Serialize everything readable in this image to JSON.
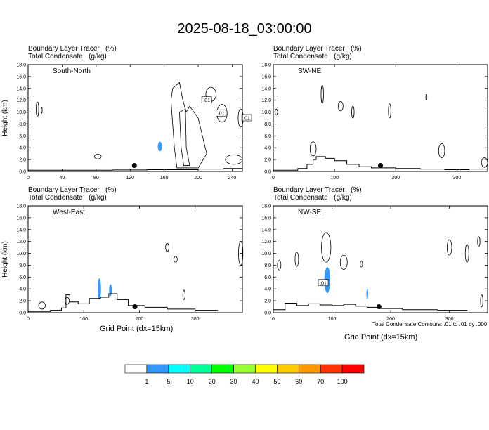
{
  "title": "2025-08-18_03:00:00",
  "field_labels": {
    "line1": "Boundary Layer Tracer   (%)",
    "line2": "Total Condensate   (g/kg)"
  },
  "colors": {
    "tracer_fill": "#3399ff",
    "contour": "#000000",
    "colorbar": [
      "#ffffff",
      "#3399ff",
      "#00ffff",
      "#00ff99",
      "#00ff00",
      "#99ff33",
      "#ffff00",
      "#ffcc00",
      "#ff9900",
      "#ff3300",
      "#ff0000"
    ]
  },
  "footnote": "Total Condensate Contours: .01 to .01 by .000",
  "chart_data": [
    {
      "type": "contour",
      "panel": "South-North",
      "ylabel": "Height (km)",
      "xlabel": "",
      "xlim": [
        0,
        252
      ],
      "ylim": [
        0,
        18
      ],
      "xticks": [
        0,
        40,
        80,
        120,
        160,
        200,
        240
      ],
      "yticks": [
        "0.0",
        "2.0",
        "4.0",
        "6.0",
        "8.0",
        "10.0",
        "12.0",
        "14.0",
        "16.0",
        "18.0"
      ],
      "contour_labels": [
        ".01",
        ".01",
        ".01"
      ],
      "marker_x": 125,
      "marker_y": 1.0,
      "terrain": [
        [
          0,
          0.2
        ],
        [
          60,
          0.2
        ],
        [
          100,
          0.25
        ],
        [
          140,
          0.3
        ],
        [
          170,
          0.3
        ],
        [
          200,
          0.4
        ],
        [
          230,
          0.5
        ],
        [
          252,
          0.5
        ]
      ]
    },
    {
      "type": "contour",
      "panel": "SW-NE",
      "ylabel": "",
      "xlabel": "",
      "xlim": [
        0,
        350
      ],
      "ylim": [
        0,
        18
      ],
      "xticks": [
        0,
        100,
        200,
        300
      ],
      "yticks": [
        "0.0",
        "2.0",
        "4.0",
        "6.0",
        "8.0",
        "10.0",
        "12.0",
        "14.0",
        "16.0",
        "18.0"
      ],
      "contour_labels": [],
      "marker_x": 175,
      "marker_y": 1.0,
      "terrain": [
        [
          0,
          0.2
        ],
        [
          20,
          0.2
        ],
        [
          40,
          0.5
        ],
        [
          55,
          1.2
        ],
        [
          65,
          2.0
        ],
        [
          70,
          2.5
        ],
        [
          85,
          2.2
        ],
        [
          100,
          1.8
        ],
        [
          120,
          1.2
        ],
        [
          140,
          0.8
        ],
        [
          160,
          0.6
        ],
        [
          200,
          0.5
        ],
        [
          240,
          0.4
        ],
        [
          280,
          0.3
        ],
        [
          320,
          0.4
        ],
        [
          350,
          0.5
        ]
      ]
    },
    {
      "type": "contour",
      "panel": "West-East",
      "ylabel": "Height (km)",
      "xlabel": "Grid Point (dx=15km)",
      "xlim": [
        0,
        385
      ],
      "ylim": [
        0,
        18
      ],
      "xticks": [
        0,
        100,
        200,
        300
      ],
      "yticks": [
        "0.0",
        "2.0",
        "4.0",
        "6.0",
        "8.0",
        "10.0",
        "12.0",
        "14.0",
        "16.0",
        "18.0"
      ],
      "contour_labels": [],
      "marker_x": 192,
      "marker_y": 1.0,
      "terrain": [
        [
          0,
          0.2
        ],
        [
          40,
          0.4
        ],
        [
          60,
          0.8
        ],
        [
          68,
          3.0
        ],
        [
          75,
          1.8
        ],
        [
          90,
          1.5
        ],
        [
          110,
          2.4
        ],
        [
          130,
          2.6
        ],
        [
          145,
          3.2
        ],
        [
          160,
          2.2
        ],
        [
          180,
          1.2
        ],
        [
          210,
          0.9
        ],
        [
          250,
          0.6
        ],
        [
          300,
          0.4
        ],
        [
          340,
          0.3
        ],
        [
          385,
          0.3
        ]
      ]
    },
    {
      "type": "contour",
      "panel": "NW-SE",
      "ylabel": "",
      "xlabel": "Grid Point (dx=15km)",
      "xlim": [
        0,
        365
      ],
      "ylim": [
        0,
        18
      ],
      "xticks": [
        0,
        100,
        200,
        300
      ],
      "yticks": [
        "0.0",
        "2.0",
        "4.0",
        "6.0",
        "8.0",
        "10.0",
        "12.0",
        "14.0",
        "16.0",
        "18.0"
      ],
      "contour_labels": [
        ".01"
      ],
      "marker_x": 180,
      "marker_y": 1.0,
      "terrain": [
        [
          0,
          0.5
        ],
        [
          20,
          1.6
        ],
        [
          40,
          1.2
        ],
        [
          60,
          1.5
        ],
        [
          80,
          1.3
        ],
        [
          100,
          1.2
        ],
        [
          120,
          1.4
        ],
        [
          140,
          1.1
        ],
        [
          160,
          0.9
        ],
        [
          180,
          0.7
        ],
        [
          220,
          0.5
        ],
        [
          280,
          0.4
        ],
        [
          330,
          0.3
        ],
        [
          365,
          0.3
        ]
      ]
    }
  ],
  "colorbar": {
    "labels": [
      "1",
      "5",
      "10",
      "20",
      "30",
      "40",
      "50",
      "60",
      "70",
      "100"
    ]
  }
}
